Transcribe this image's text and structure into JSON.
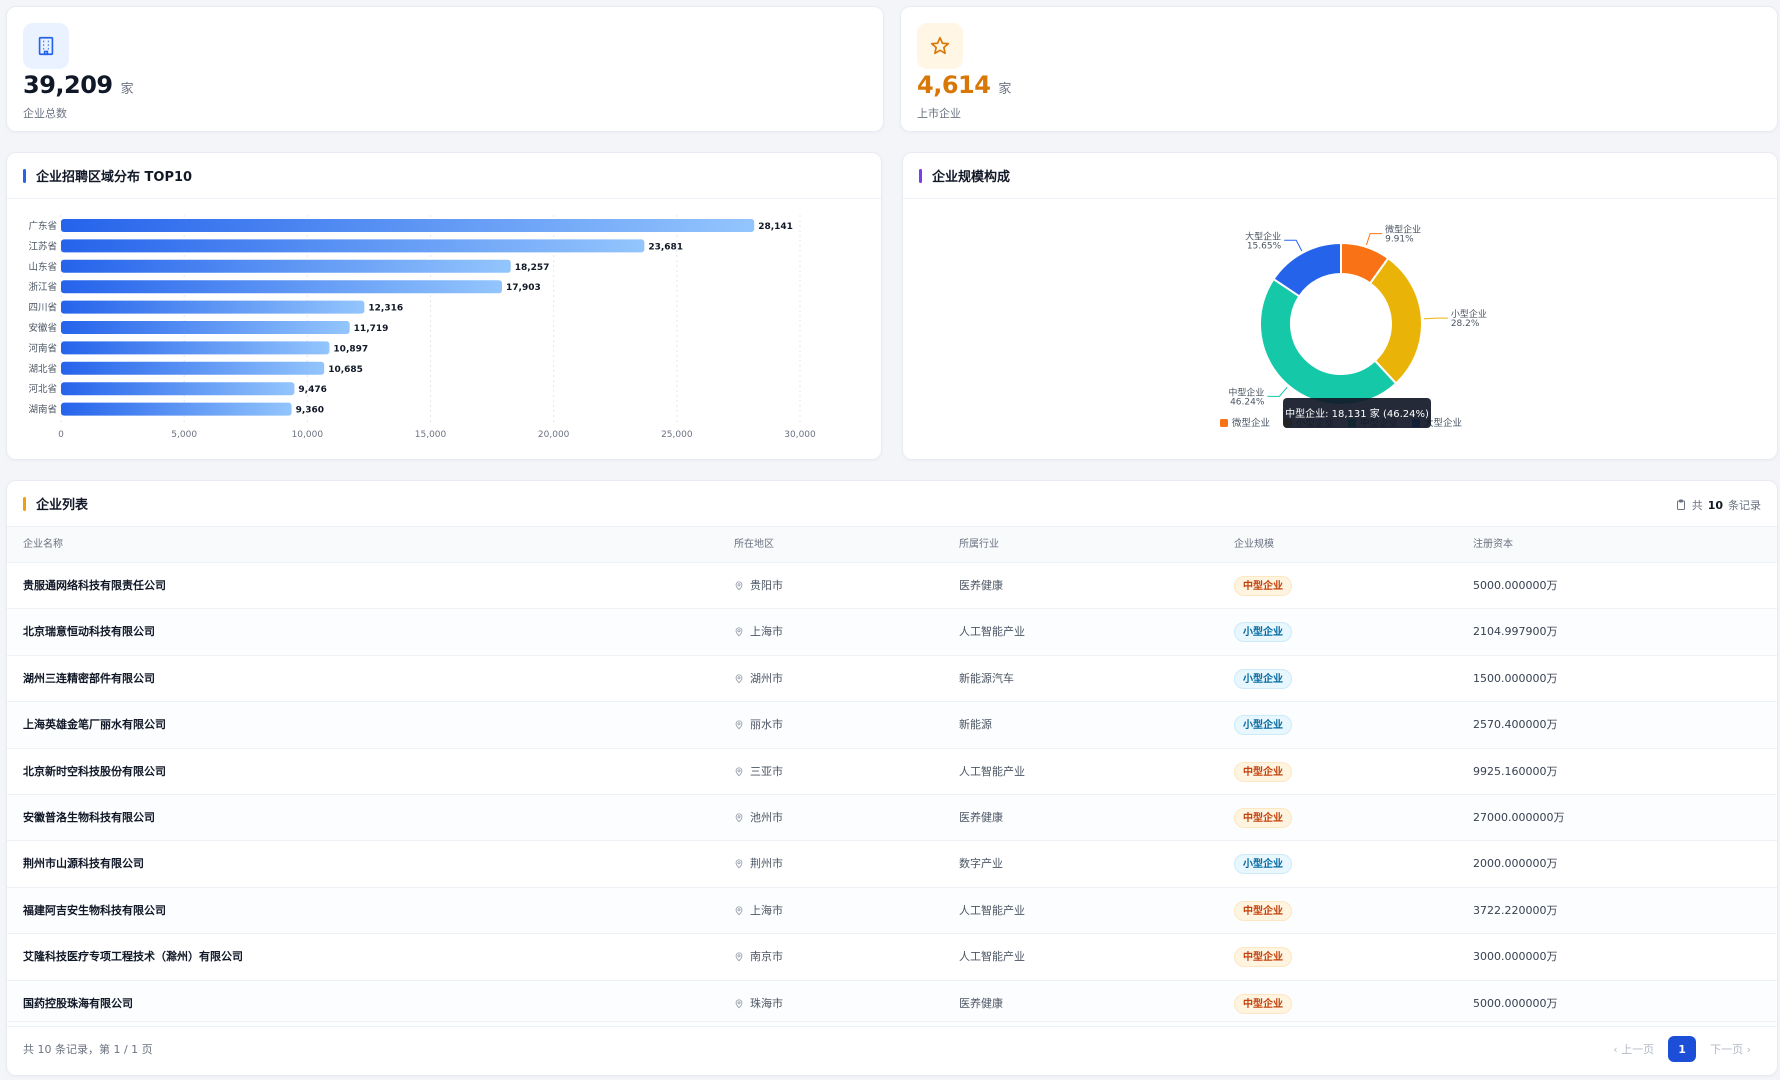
{
  "kpis": {
    "total": {
      "value": "39,209",
      "unit": "家",
      "label": "企业总数",
      "icon": "building-icon"
    },
    "listed": {
      "value": "4,614",
      "unit": "家",
      "label": "上市企业",
      "icon": "star-icon"
    }
  },
  "bar_card": {
    "title": "企业招聘区域分布 TOP10"
  },
  "donut_card": {
    "title": "企业规模构成",
    "tooltip": "中型企业: 18,131 家 (46.24%)"
  },
  "chart_data": [
    {
      "type": "bar",
      "orientation": "horizontal",
      "title": "企业招聘区域分布 TOP10",
      "categories": [
        "广东省",
        "江苏省",
        "山东省",
        "浙江省",
        "四川省",
        "安徽省",
        "河南省",
        "湖北省",
        "河北省",
        "湖南省"
      ],
      "values": [
        28141,
        23681,
        18257,
        17903,
        12316,
        11719,
        10897,
        10685,
        9476,
        9360
      ],
      "value_labels": [
        "28,141",
        "23,681",
        "18,257",
        "17,903",
        "12,316",
        "11,719",
        "10,897",
        "10,685",
        "9,476",
        "9,360"
      ],
      "xlim": [
        0,
        30000
      ],
      "xticks": [
        "0",
        "5,000",
        "10,000",
        "15,000",
        "20,000",
        "25,000",
        "30,000"
      ],
      "xtick_values": [
        0,
        5000,
        10000,
        15000,
        20000,
        25000,
        30000
      ],
      "grid": true,
      "colors": {
        "start": "#2563eb",
        "end": "#93c5fd"
      }
    },
    {
      "type": "pie",
      "donut": true,
      "title": "企业规模构成",
      "slices": [
        {
          "name": "微型企业",
          "percent": 9.91,
          "label": "9.91%",
          "color": "#f97316"
        },
        {
          "name": "小型企业",
          "percent": 28.2,
          "label": "28.2%",
          "color": "#eab308"
        },
        {
          "name": "中型企业",
          "percent": 46.24,
          "label": "46.24%",
          "color": "#14c8a8"
        },
        {
          "name": "大型企业",
          "percent": 15.65,
          "label": "15.65%",
          "color": "#2563eb"
        }
      ],
      "legend": "bottom"
    }
  ],
  "table": {
    "title": "企业列表",
    "record_prefix": "共",
    "record_count": "10",
    "record_suffix": "条记录",
    "columns": [
      "企业名称",
      "所在地区",
      "所属行业",
      "企业规模",
      "注册资本"
    ],
    "rows": [
      {
        "name": "贵服通网络科技有限责任公司",
        "region": "贵阳市",
        "industry": "医养健康",
        "scale": "中型企业",
        "scale_type": "mid",
        "capital": "5000.000000万"
      },
      {
        "name": "北京瑞意恒动科技有限公司",
        "region": "上海市",
        "industry": "人工智能产业",
        "scale": "小型企业",
        "scale_type": "small",
        "capital": "2104.997900万"
      },
      {
        "name": "湖州三连精密部件有限公司",
        "region": "湖州市",
        "industry": "新能源汽车",
        "scale": "小型企业",
        "scale_type": "small",
        "capital": "1500.000000万"
      },
      {
        "name": "上海英雄金笔厂丽水有限公司",
        "region": "丽水市",
        "industry": "新能源",
        "scale": "小型企业",
        "scale_type": "small",
        "capital": "2570.400000万"
      },
      {
        "name": "北京新时空科技股份有限公司",
        "region": "三亚市",
        "industry": "人工智能产业",
        "scale": "中型企业",
        "scale_type": "mid",
        "capital": "9925.160000万"
      },
      {
        "name": "安徽普洛生物科技有限公司",
        "region": "池州市",
        "industry": "医养健康",
        "scale": "中型企业",
        "scale_type": "mid",
        "capital": "27000.000000万"
      },
      {
        "name": "荆州市山源科技有限公司",
        "region": "荆州市",
        "industry": "数字产业",
        "scale": "小型企业",
        "scale_type": "small",
        "capital": "2000.000000万"
      },
      {
        "name": "福建阿吉安生物科技有限公司",
        "region": "上海市",
        "industry": "人工智能产业",
        "scale": "中型企业",
        "scale_type": "mid",
        "capital": "3722.220000万"
      },
      {
        "name": "艾隆科技医疗专项工程技术（滁州）有限公司",
        "region": "南京市",
        "industry": "人工智能产业",
        "scale": "中型企业",
        "scale_type": "mid",
        "capital": "3000.000000万"
      },
      {
        "name": "国药控股珠海有限公司",
        "region": "珠海市",
        "industry": "医养健康",
        "scale": "中型企业",
        "scale_type": "mid",
        "capital": "5000.000000万"
      }
    ],
    "footer": "共 10 条记录，第 1 / 1 页",
    "pagination": {
      "prev": "上一页",
      "current": "1",
      "next": "下一页"
    }
  }
}
